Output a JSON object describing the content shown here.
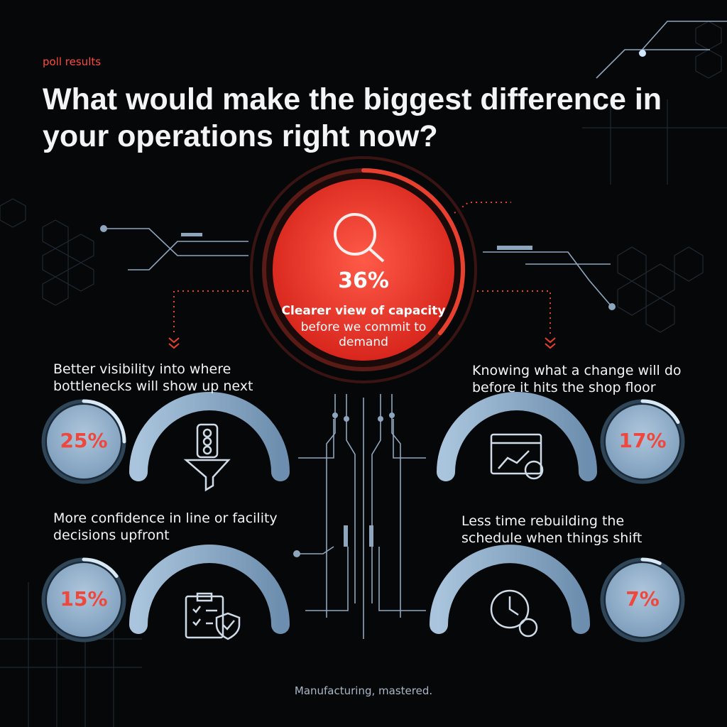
{
  "header": {
    "eyebrow": "poll results",
    "title": "What would make the biggest difference in your operations right now?"
  },
  "featured": {
    "value": 36,
    "value_label": "36%",
    "title": "Clearer view of capacity",
    "text": "before we commit to demand"
  },
  "items": [
    {
      "label": "Better visibility into where bottlenecks will show up next",
      "value": 25,
      "value_label": "25%"
    },
    {
      "label": "Knowing what a change will do before it hits the shop floor",
      "value": 17,
      "value_label": "17%"
    },
    {
      "label": "More confidence in line or facility decisions upfront",
      "value": 15,
      "value_label": "15%"
    },
    {
      "label": "Less time rebuilding the schedule when things shift",
      "value": 7,
      "value_label": "7%"
    }
  ],
  "footer": "Manufacturing, mastered."
}
